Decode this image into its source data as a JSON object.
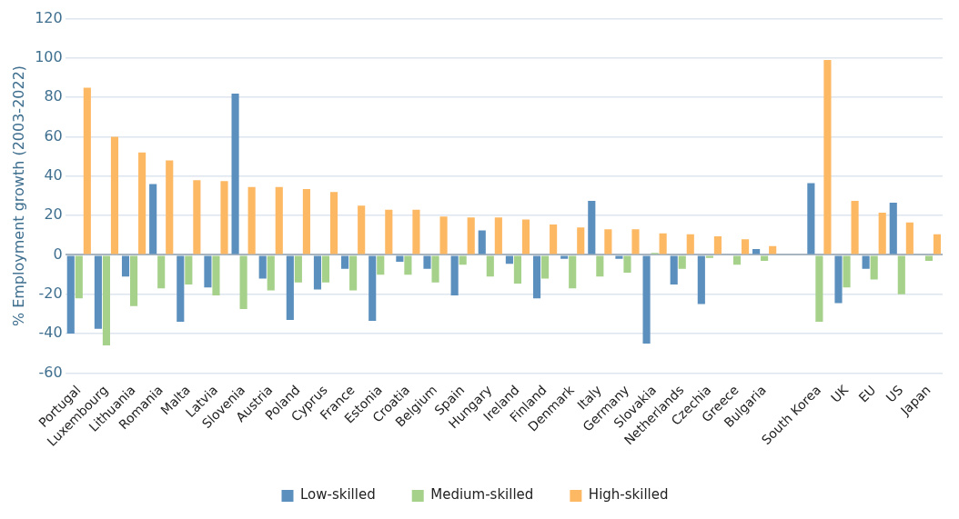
{
  "chart_data": {
    "type": "bar",
    "ylabel": "% Employment growth (2003-2022)",
    "categories": [
      "Portugal",
      "Luxembourg",
      "Lithuania",
      "Romania",
      "Malta",
      "Latvia",
      "Slovenia",
      "Austria",
      "Poland",
      "Cyprus",
      "France",
      "Estonia",
      "Croatia",
      "Belgium",
      "Spain",
      "Hungary",
      "Ireland",
      "Finland",
      "Denmark",
      "Italy",
      "Germany",
      "Slovakia",
      "Netherlands",
      "Czechia",
      "Greece",
      "Bulgaria",
      null,
      "South Korea",
      "UK",
      "EU",
      "US",
      "Japan"
    ],
    "series": [
      {
        "name": "Low-skilled",
        "color": "#5b8fbe",
        "values": [
          -40,
          -37.5,
          -11,
          36,
          -34,
          -16.5,
          82,
          -12,
          -33,
          -17.5,
          -7,
          -33.5,
          -3.5,
          -7,
          -20.5,
          12.5,
          -4.5,
          -22,
          -2,
          27.5,
          -2,
          -45,
          -15,
          -25,
          0.5,
          3,
          null,
          36.5,
          -24.5,
          -7,
          26.5,
          0.5
        ]
      },
      {
        "name": "Medium-skilled",
        "color": "#a6d18a",
        "values": [
          -22,
          -46,
          -26,
          -17,
          -15,
          -20.5,
          -27.5,
          -18,
          -14,
          -14,
          -18,
          -10,
          -10,
          -14,
          -5,
          -11,
          -14.5,
          -12,
          -17,
          -11,
          -9,
          1,
          -7,
          -1.5,
          -5,
          -3,
          null,
          -34,
          -16.5,
          -12.5,
          -20,
          -3
        ]
      },
      {
        "name": "High-skilled",
        "color": "#fdb863",
        "values": [
          85,
          60,
          52,
          48,
          38,
          37.5,
          34.5,
          34.5,
          33.5,
          32,
          25,
          23,
          23,
          19.5,
          19,
          19,
          18,
          15.5,
          14,
          13,
          13,
          11,
          10.5,
          9.5,
          8,
          4.5,
          null,
          99,
          27.5,
          21.5,
          16.5,
          10.5
        ]
      }
    ],
    "ylim": [
      -60,
      120
    ],
    "yticks": [
      -60,
      -40,
      -20,
      0,
      20,
      40,
      60,
      80,
      100,
      120
    ],
    "grid": "y",
    "legend": "bottom"
  }
}
